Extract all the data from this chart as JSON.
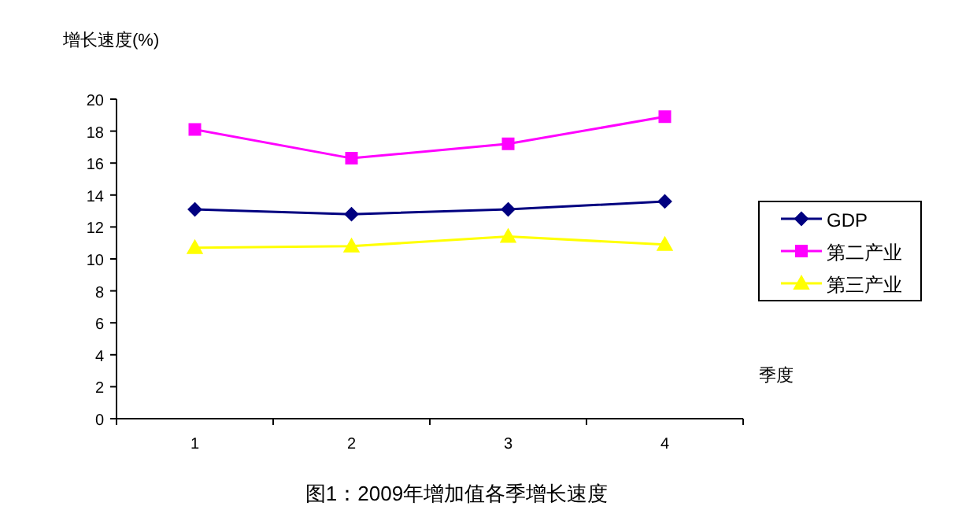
{
  "chart_data": {
    "type": "line",
    "title": "图1：2009年增加值各季增长速度",
    "ylabel": "增长速度(%)",
    "xlabel": "季度",
    "categories": [
      "1",
      "2",
      "3",
      "4"
    ],
    "series": [
      {
        "name": "GDP",
        "color": "#000080",
        "marker": "diamond",
        "values": [
          13.1,
          12.8,
          13.1,
          13.6
        ]
      },
      {
        "name": "第二产业",
        "color": "#ff00ff",
        "marker": "square",
        "values": [
          18.1,
          16.3,
          17.2,
          18.9
        ]
      },
      {
        "name": "第三产业",
        "color": "#ffff00",
        "marker": "triangle",
        "values": [
          10.7,
          10.8,
          11.4,
          10.9
        ]
      }
    ],
    "ylim": [
      0,
      20
    ],
    "yticks": [
      0,
      2,
      4,
      6,
      8,
      10,
      12,
      14,
      16,
      18,
      20
    ],
    "grid": false,
    "legend": "right"
  }
}
